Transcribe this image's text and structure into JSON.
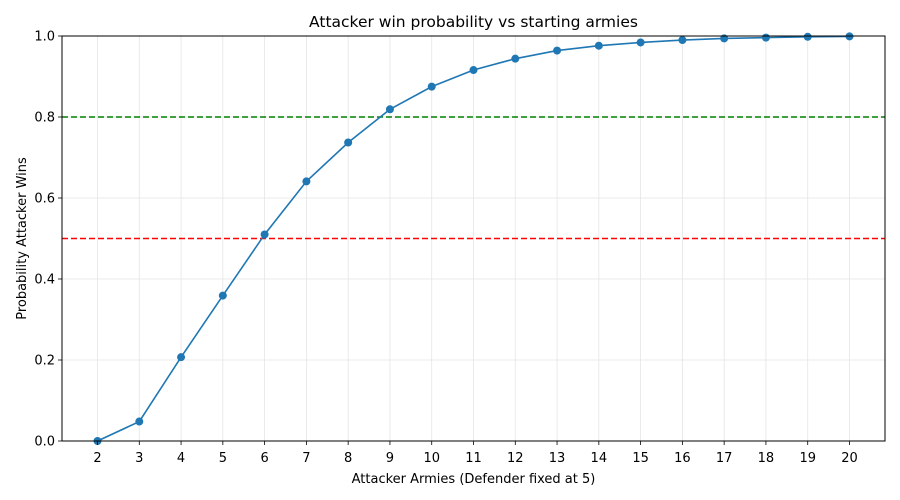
{
  "chart_data": {
    "type": "line",
    "title": "Attacker win probability vs starting armies",
    "xlabel": "Attacker Armies (Defender fixed at 5)",
    "ylabel": "Probability Attacker Wins",
    "x": [
      2,
      3,
      4,
      5,
      6,
      7,
      8,
      9,
      10,
      11,
      12,
      13,
      14,
      15,
      16,
      17,
      18,
      19,
      20
    ],
    "series": [
      {
        "values": [
          0.0,
          0.048,
          0.207,
          0.359,
          0.51,
          0.641,
          0.737,
          0.819,
          0.875,
          0.916,
          0.944,
          0.964,
          0.976,
          0.984,
          0.99,
          0.994,
          0.996,
          0.998,
          0.999
        ],
        "color": "#1f77b4",
        "marker": "circle"
      }
    ],
    "reference_lines": [
      {
        "y": 0.8,
        "color": "#008000",
        "style": "dashed"
      },
      {
        "y": 0.5,
        "color": "#ff0000",
        "style": "dashed"
      }
    ],
    "xlim": [
      1.15,
      20.85
    ],
    "ylim": [
      0,
      1.0
    ],
    "yticks": [
      0.0,
      0.2,
      0.4,
      0.6,
      0.8,
      1.0
    ],
    "ytick_labels": [
      "0.0",
      "0.2",
      "0.4",
      "0.6",
      "0.8",
      "1.0"
    ],
    "xtick_labels": [
      "2",
      "3",
      "4",
      "5",
      "6",
      "7",
      "8",
      "9",
      "10",
      "11",
      "12",
      "13",
      "14",
      "15",
      "16",
      "17",
      "18",
      "19",
      "20"
    ],
    "grid": true
  }
}
